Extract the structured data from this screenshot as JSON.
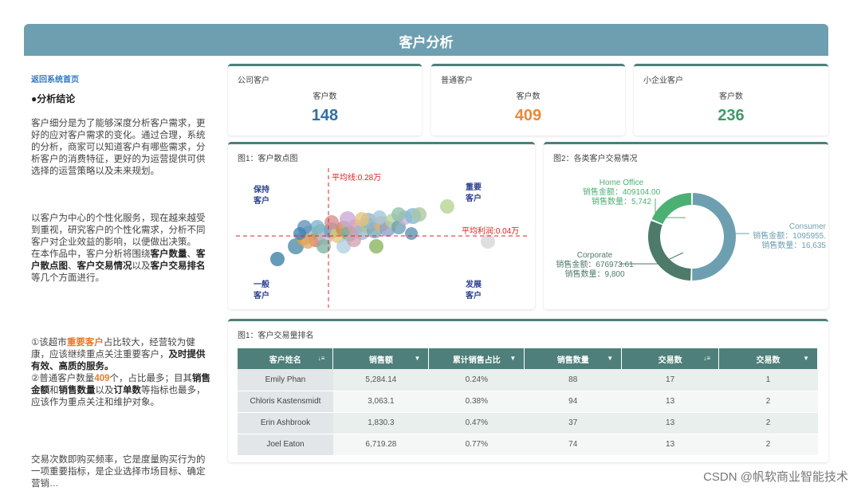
{
  "page_title": "客户分析",
  "left": {
    "home_link": "返回系统首页",
    "conclusion_title": "●分析结论",
    "p1": "客户细分是为了能够深度分析客户需求，更好的应对客户需求的变化。通过合理，系统的分析，商家可以知道客户有哪些需求，分析客户的消费特征，更好的为运营提供可供选择的运营策略以及未来规划。",
    "p2a": "以客户为中心的个性化服务，现在越来越受到重视，研究客户的个性化需求，分析不同客户对企业效益的影响，以便做出决策。",
    "p2b_1": "在本作品中，客户分析将围绕",
    "p2b_b1": "客户数量",
    "p2b_2": "、",
    "p2b_b2": "客户散点图",
    "p2b_3": "、",
    "p2b_b3": "客户交易情况",
    "p2b_4": "以及",
    "p2b_b4": "客户交易排名",
    "p2b_5": "等几个方面进行。",
    "p3_1": "①该超市",
    "p3_hl1": "重要客户",
    "p3_2": "占比较大，经营较为健康，应该继续重点关注重要客户，",
    "p3_b1": "及时提供有效、高质的服务。",
    "p3_3": "②普通客户数量",
    "p3_hl2": "409",
    "p3_4": "个，占比最多；目其",
    "p3_b2": "销售金额",
    "p3_5": "和",
    "p3_b3": "销售数量",
    "p3_6": "以及",
    "p3_b4": "订单数",
    "p3_7": "等指标也最多，应该作为重点关注和维护对象。",
    "p4": "交易次数即购买频率，它是度量购买行为的一项重要指标，是企业选择市场目标、确定营销…"
  },
  "kpis": [
    {
      "label": "公司客户",
      "sub": "客户数",
      "value": "148",
      "color": "#2f6fa7"
    },
    {
      "label": "普通客户",
      "sub": "客户数",
      "value": "409",
      "color": "#e8893a"
    },
    {
      "label": "小企业客户",
      "sub": "客户数",
      "value": "236",
      "color": "#3f9a66"
    }
  ],
  "scatter": {
    "title": "图1：客户散点图",
    "q_tl": "保持\n客户",
    "q_tr": "重要\n客户",
    "q_bl": "一般\n客户",
    "q_br": "发展\n客户",
    "vline_label": "平均线:0.28万",
    "hline_label": "平均利润:0.04万"
  },
  "donut": {
    "title": "图2：各类客户交易情况",
    "segments": [
      {
        "name": "Consumer",
        "sales_label": "销售金额：1095955.",
        "qty_label": "销售数量：16,635",
        "color": "#6d9fb1",
        "sales": 1095955,
        "qty": 16635
      },
      {
        "name": "Corporate",
        "sales_label": "销售金额：676973.61",
        "qty_label": "销售数量：9,800",
        "color": "#4e7a6a",
        "sales": 676973.61,
        "qty": 9800
      },
      {
        "name": "Home Office",
        "sales_label": "销售金额：409104.00",
        "qty_label": "销售数量：5,742",
        "color": "#4caf74",
        "sales": 409104.0,
        "qty": 5742
      }
    ]
  },
  "table": {
    "title": "图1：客户交易量排名",
    "headers": [
      "客户姓名",
      "销售额",
      "累计销售占比",
      "销售数量",
      "交易数",
      "交易数"
    ],
    "rows": [
      [
        "Emily Phan",
        "5,284.14",
        "0.24%",
        "88",
        "17",
        "1"
      ],
      [
        "Chloris Kastensmidt",
        "3,063.1",
        "0.38%",
        "94",
        "13",
        "2"
      ],
      [
        "Erin Ashbrook",
        "1,830.3",
        "0.47%",
        "37",
        "13",
        "2"
      ],
      [
        "Joel Eaton",
        "6,719.28",
        "0.77%",
        "74",
        "13",
        "2"
      ]
    ]
  },
  "watermark": "CSDN @帆软商业智能技术"
}
